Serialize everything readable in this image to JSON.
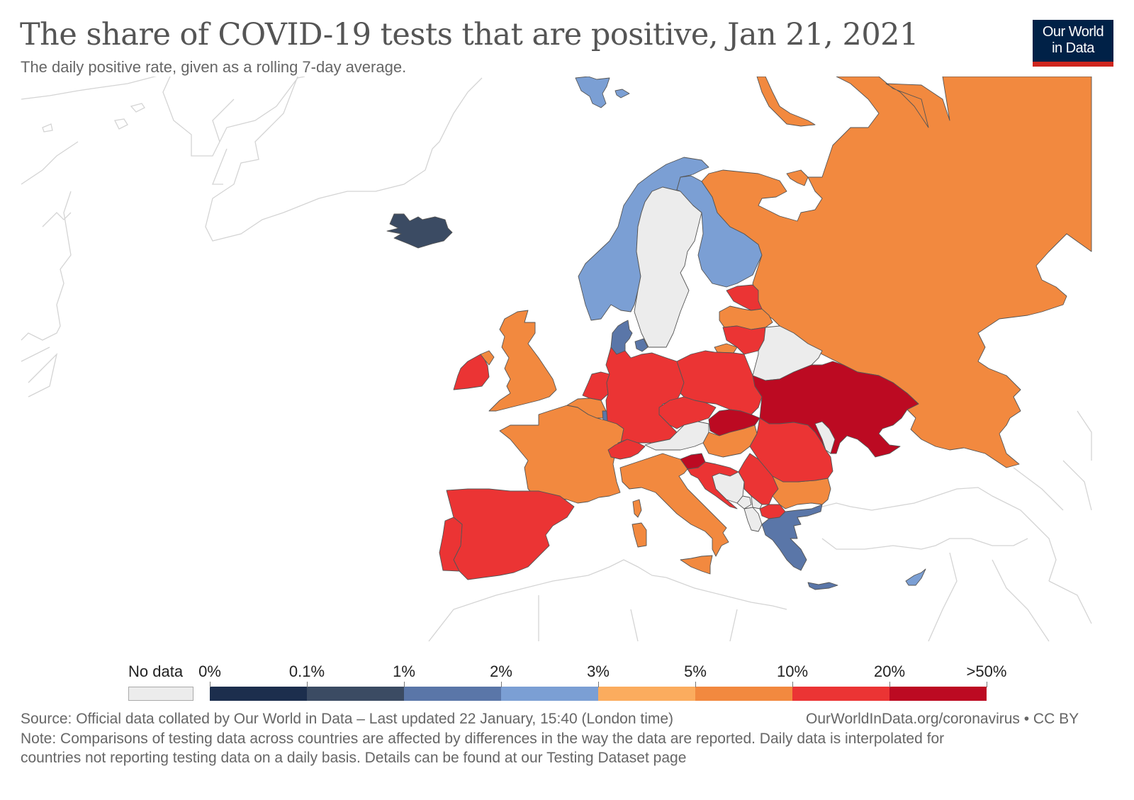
{
  "header": {
    "title": "The share of COVID-19 tests that are positive, Jan 21, 2021",
    "subtitle": "The daily positive rate, given as a rolling 7-day average.",
    "logo_line1": "Our World",
    "logo_line2": "in Data"
  },
  "colors": {
    "no_data": "#ececec",
    "bins": [
      "#1c2e4d",
      "#3b4b63",
      "#5a76a8",
      "#7b9fd4",
      "#fbac5e",
      "#f2893f",
      "#eb3434",
      "#bc0a22"
    ],
    "logo_bg": "#002147",
    "logo_bar": "#ce261e",
    "background_outline": "#d4d4d4"
  },
  "legend": {
    "no_data_label": "No data",
    "tick_labels": [
      "0%",
      "0.1%",
      "1%",
      "2%",
      "3%",
      "5%",
      "10%",
      "20%",
      ">50%"
    ]
  },
  "chart_data": {
    "type": "choropleth",
    "title": "The share of COVID-19 tests that are positive, Jan 21, 2021",
    "subtitle": "The daily positive rate, given as a rolling 7-day average.",
    "date": "Jan 21, 2021",
    "region": "Europe",
    "bins": [
      "0-0.1%",
      "0.1-1%",
      "1-2%",
      "2-3%",
      "3-5%",
      "5-10%",
      "10-20%",
      "20-50%+"
    ],
    "countries": [
      {
        "name": "Iceland",
        "bin": "0.1-1%"
      },
      {
        "name": "Svalbard",
        "bin": "2-3%"
      },
      {
        "name": "Norway",
        "bin": "2-3%"
      },
      {
        "name": "Sweden",
        "bin": "No data"
      },
      {
        "name": "Finland",
        "bin": "2-3%"
      },
      {
        "name": "Denmark",
        "bin": "1-2%"
      },
      {
        "name": "Russia",
        "bin": "5-10%"
      },
      {
        "name": "Estonia",
        "bin": "10-20%"
      },
      {
        "name": "Latvia",
        "bin": "5-10%"
      },
      {
        "name": "Lithuania",
        "bin": "10-20%"
      },
      {
        "name": "Kaliningrad",
        "bin": "5-10%"
      },
      {
        "name": "Belarus",
        "bin": "No data"
      },
      {
        "name": "Ireland",
        "bin": "10-20%"
      },
      {
        "name": "Northern Ireland (UK)",
        "bin": "5-10%"
      },
      {
        "name": "United Kingdom",
        "bin": "5-10%"
      },
      {
        "name": "Netherlands",
        "bin": "10-20%"
      },
      {
        "name": "Belgium",
        "bin": "5-10%"
      },
      {
        "name": "Luxembourg",
        "bin": "1-2%"
      },
      {
        "name": "France",
        "bin": "5-10%"
      },
      {
        "name": "Germany",
        "bin": "10-20%"
      },
      {
        "name": "Poland",
        "bin": "10-20%"
      },
      {
        "name": "Czechia",
        "bin": "10-20%"
      },
      {
        "name": "Slovakia",
        "bin": "20-50%+"
      },
      {
        "name": "Austria",
        "bin": "No data"
      },
      {
        "name": "Switzerland",
        "bin": "10-20%"
      },
      {
        "name": "Hungary",
        "bin": "5-10%"
      },
      {
        "name": "Slovenia",
        "bin": "20-50%+"
      },
      {
        "name": "Croatia",
        "bin": "10-20%"
      },
      {
        "name": "Bosnia and Herzegovina",
        "bin": "No data"
      },
      {
        "name": "Serbia",
        "bin": "10-20%"
      },
      {
        "name": "Montenegro",
        "bin": "No data"
      },
      {
        "name": "Kosovo",
        "bin": "No data"
      },
      {
        "name": "Albania",
        "bin": "No data"
      },
      {
        "name": "North Macedonia",
        "bin": "10-20%"
      },
      {
        "name": "Bulgaria",
        "bin": "5-10%"
      },
      {
        "name": "Romania",
        "bin": "10-20%"
      },
      {
        "name": "Moldova",
        "bin": "No data"
      },
      {
        "name": "Ukraine",
        "bin": "20-50%+"
      },
      {
        "name": "Greece",
        "bin": "1-2%"
      },
      {
        "name": "Cyprus",
        "bin": "2-3%"
      },
      {
        "name": "Italy",
        "bin": "5-10%"
      },
      {
        "name": "Spain",
        "bin": "10-20%"
      },
      {
        "name": "Portugal",
        "bin": "10-20%"
      }
    ]
  },
  "footer": {
    "source": "Source: Official data collated by Our World in Data – Last updated 22 January, 15:40 (London time)",
    "url": "OurWorldInData.org/coronavirus • CC BY",
    "note_line1": "Note: Comparisons of testing data across countries are affected by differences in the way the data are reported. Daily data is interpolated for",
    "note_line2": "countries not reporting testing data on a daily basis. Details can be found at our Testing Dataset page"
  }
}
